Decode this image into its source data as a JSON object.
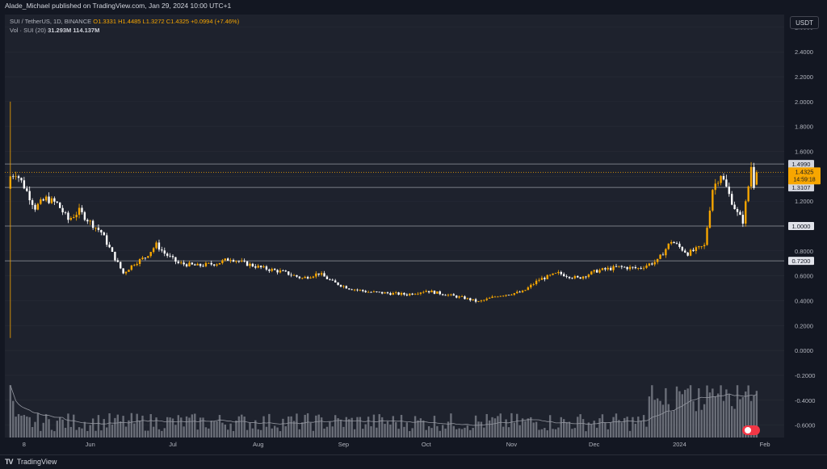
{
  "header": {
    "publisher_text": "Alade_Michael published on TradingView.com, Jan 29, 2024 10:00 UTC+1"
  },
  "legend": {
    "symbol": "SUI / TetherUS, 1D, BINANCE",
    "ohlc": "O1.3331  H1.4485  L1.3272  C1.4325  +0.0994 (+7.46%)",
    "volume_label": "Vol · SUI (20)",
    "volume_value": "31.293M",
    "volume_ma": "114.137M"
  },
  "axis_currency": "USDT",
  "footer": {
    "brand": "TradingView",
    "logo": "TV"
  },
  "icons": {
    "brand_logo": "tradingview-logo-icon",
    "flag": "us-flag-icon"
  },
  "colors": {
    "background": "#131722",
    "pane": "#1e222d",
    "up": "#f7a600",
    "down": "#ffffff",
    "price_line": "#f7a600",
    "level_line": "#9598a1",
    "volume": "#787b86",
    "volume_ma": "#9598a1"
  },
  "chart_data": {
    "type": "candlestick",
    "symbol": "SUI/USDT",
    "timeframe": "1D",
    "ylim": [
      -0.7,
      2.7
    ],
    "y_ticks": [
      2.6,
      2.4,
      2.2,
      2.0,
      1.8,
      1.6,
      1.4,
      1.2,
      1.0,
      0.8,
      0.6,
      0.4,
      0.2,
      0.0,
      -0.2,
      -0.4,
      -0.6
    ],
    "y_tick_labels": [
      "2.6000",
      "2.4000",
      "2.2000",
      "2.0000",
      "1.8000",
      "1.6000",
      "1.4000",
      "1.2000",
      "1.0000",
      "0.8000",
      "0.6000",
      "0.4000",
      "0.2000",
      "0.0000",
      "-0.2000",
      "-0.4000",
      "-0.6000"
    ],
    "x_ticks": [
      "8",
      "Jun",
      "Jul",
      "Aug",
      "Sep",
      "Oct",
      "Nov",
      "Dec",
      "2024",
      "Feb"
    ],
    "x_tick_dates": [
      "2023-05-08",
      "2023-06-01",
      "2023-07-01",
      "2023-08-01",
      "2023-09-01",
      "2023-10-01",
      "2023-11-01",
      "2023-12-01",
      "2024-01-01",
      "2024-02-01"
    ],
    "close_path": [
      [
        "2023-05-03",
        1.4
      ],
      [
        "2023-05-05",
        1.43
      ],
      [
        "2023-05-08",
        1.32
      ],
      [
        "2023-05-12",
        1.15
      ],
      [
        "2023-05-16",
        1.22
      ],
      [
        "2023-05-20",
        1.18
      ],
      [
        "2023-05-24",
        1.05
      ],
      [
        "2023-05-28",
        1.12
      ],
      [
        "2023-06-01",
        1.03
      ],
      [
        "2023-06-05",
        0.95
      ],
      [
        "2023-06-09",
        0.78
      ],
      [
        "2023-06-13",
        0.62
      ],
      [
        "2023-06-17",
        0.7
      ],
      [
        "2023-06-21",
        0.75
      ],
      [
        "2023-06-25",
        0.85
      ],
      [
        "2023-06-28",
        0.78
      ],
      [
        "2023-07-03",
        0.7
      ],
      [
        "2023-07-10",
        0.68
      ],
      [
        "2023-07-17",
        0.7
      ],
      [
        "2023-07-22",
        0.74
      ],
      [
        "2023-07-27",
        0.7
      ],
      [
        "2023-08-03",
        0.66
      ],
      [
        "2023-08-10",
        0.63
      ],
      [
        "2023-08-17",
        0.58
      ],
      [
        "2023-08-23",
        0.62
      ],
      [
        "2023-08-28",
        0.55
      ],
      [
        "2023-09-03",
        0.5
      ],
      [
        "2023-09-10",
        0.47
      ],
      [
        "2023-09-17",
        0.46
      ],
      [
        "2023-09-24",
        0.45
      ],
      [
        "2023-10-01",
        0.48
      ],
      [
        "2023-10-08",
        0.45
      ],
      [
        "2023-10-15",
        0.42
      ],
      [
        "2023-10-20",
        0.39
      ],
      [
        "2023-10-27",
        0.44
      ],
      [
        "2023-11-05",
        0.47
      ],
      [
        "2023-11-11",
        0.57
      ],
      [
        "2023-11-18",
        0.62
      ],
      [
        "2023-11-25",
        0.58
      ],
      [
        "2023-12-02",
        0.64
      ],
      [
        "2023-12-10",
        0.67
      ],
      [
        "2023-12-17",
        0.66
      ],
      [
        "2023-12-24",
        0.72
      ],
      [
        "2023-12-29",
        0.88
      ],
      [
        "2024-01-04",
        0.78
      ],
      [
        "2024-01-10",
        0.84
      ],
      [
        "2024-01-13",
        1.3
      ],
      [
        "2024-01-16",
        1.42
      ],
      [
        "2024-01-19",
        1.25
      ],
      [
        "2024-01-22",
        1.1
      ],
      [
        "2024-01-24",
        1.04
      ],
      [
        "2024-01-26",
        1.32
      ],
      [
        "2024-01-27",
        1.48
      ],
      [
        "2024-01-28",
        1.33
      ],
      [
        "2024-01-29",
        1.4325
      ]
    ],
    "first_day": {
      "date": "2023-05-03",
      "high": 2.0,
      "low": 0.1
    },
    "price_levels": [
      {
        "label": "1.4990",
        "value": 1.499
      },
      {
        "label": "1.3107",
        "value": 1.3107
      },
      {
        "label": "1.0000",
        "value": 1.0
      },
      {
        "label": "0.7200",
        "value": 0.72
      }
    ],
    "current_price": {
      "label": "1.4325",
      "value": 1.4325,
      "countdown": "14:59:18"
    },
    "series": [
      {
        "name": "Vol · SUI (20)",
        "type": "volume",
        "last": "31.293M",
        "ma": "114.137M"
      }
    ]
  }
}
